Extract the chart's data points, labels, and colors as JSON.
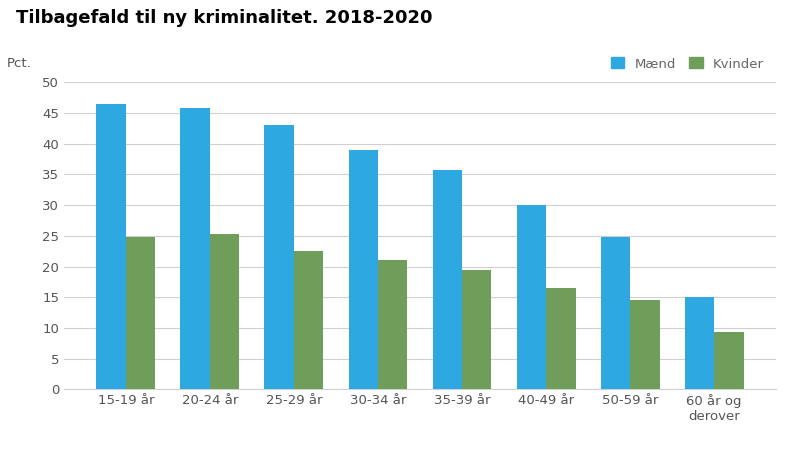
{
  "title": "Tilbagefald til ny kriminalitet. 2018-2020",
  "pct_label": "Pct.",
  "categories": [
    "15-19 år",
    "20-24 år",
    "25-29 år",
    "30-34 år",
    "35-39 år",
    "40-49 år",
    "50-59 år",
    "60 år og\nderover"
  ],
  "maend": [
    46.5,
    45.8,
    43.0,
    39.0,
    35.7,
    30.0,
    24.8,
    15.0
  ],
  "kvinder": [
    24.8,
    25.3,
    22.5,
    21.0,
    19.5,
    16.5,
    14.5,
    9.3
  ],
  "maend_color": "#2da8e0",
  "kvinder_color": "#6f9e5b",
  "background_color": "#ffffff",
  "legend_maend": "Mænd",
  "legend_kvinder": "Kvinder",
  "ylim": [
    0,
    50
  ],
  "yticks": [
    0,
    5,
    10,
    15,
    20,
    25,
    30,
    35,
    40,
    45,
    50
  ],
  "title_fontsize": 13,
  "tick_fontsize": 9.5,
  "label_fontsize": 9.5,
  "bar_width": 0.35,
  "grid_color": "#d0d0d0",
  "text_color": "#555555",
  "legend_text_color": "#666666"
}
